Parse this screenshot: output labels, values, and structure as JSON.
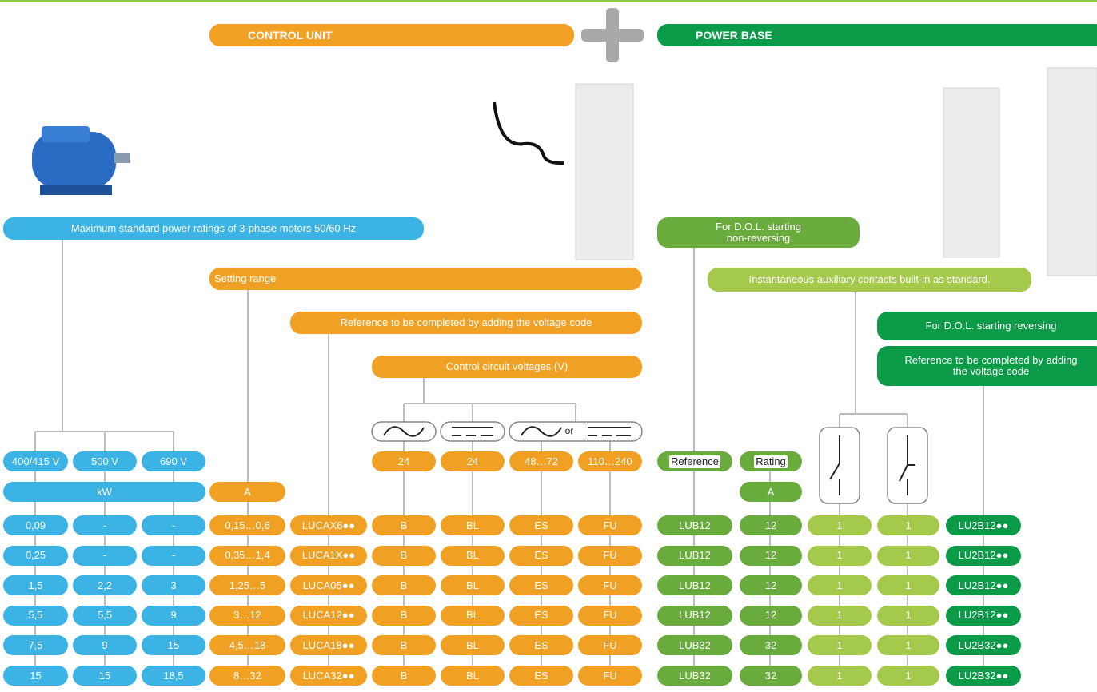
{
  "header": {
    "control_unit": "CONTROL UNIT",
    "power_base": "POWER BASE"
  },
  "labels": {
    "motor_ratings": "Maximum standard power ratings of 3-phase motors 50/60 Hz",
    "setting_range": "Setting range",
    "cu_reference": "Reference to be completed by adding the voltage code",
    "control_voltages": "Control circuit voltages (V)",
    "dol_non_reversing": "For D.O.L. starting non-reversing",
    "aux_contacts": "Instantaneous auxiliary contacts built-in as standard.",
    "dol_reversing": "For D.O.L. starting reversing",
    "pb_reference": "Reference to be completed by adding the voltage code",
    "or": "or"
  },
  "voltage_headers": {
    "motor": [
      "400/415 V",
      "500 V",
      "690 V"
    ],
    "control": [
      "24",
      "24",
      "48…72",
      "110…240"
    ],
    "reference": "Reference",
    "rating": "Rating"
  },
  "units": {
    "power": "kW",
    "setting": "A",
    "rating": "A"
  },
  "table": {
    "rows": [
      [
        "0,09",
        "-",
        "-",
        "0,15…0,6",
        "LUCAX6●●",
        "B",
        "BL",
        "ES",
        "FU",
        "LUB12",
        "12",
        "1",
        "1",
        "LU2B12●●"
      ],
      [
        "0,25",
        "-",
        "-",
        "0,35…1,4",
        "LUCA1X●●",
        "B",
        "BL",
        "ES",
        "FU",
        "LUB12",
        "12",
        "1",
        "1",
        "LU2B12●●"
      ],
      [
        "1,5",
        "2,2",
        "3",
        "1,25…5",
        "LUCA05●●",
        "B",
        "BL",
        "ES",
        "FU",
        "LUB12",
        "12",
        "1",
        "1",
        "LU2B12●●"
      ],
      [
        "5,5",
        "5,5",
        "9",
        "3…12",
        "LUCA12●●",
        "B",
        "BL",
        "ES",
        "FU",
        "LUB12",
        "12",
        "1",
        "1",
        "LU2B12●●"
      ],
      [
        "7,5",
        "9",
        "15",
        "4,5…18",
        "LUCA18●●",
        "B",
        "BL",
        "ES",
        "FU",
        "LUB32",
        "32",
        "1",
        "1",
        "LU2B32●●"
      ],
      [
        "15",
        "15",
        "18,5",
        "8…32",
        "LUCA32●●",
        "B",
        "BL",
        "ES",
        "FU",
        "LUB32",
        "32",
        "1",
        "1",
        "LU2B32●●"
      ]
    ]
  }
}
